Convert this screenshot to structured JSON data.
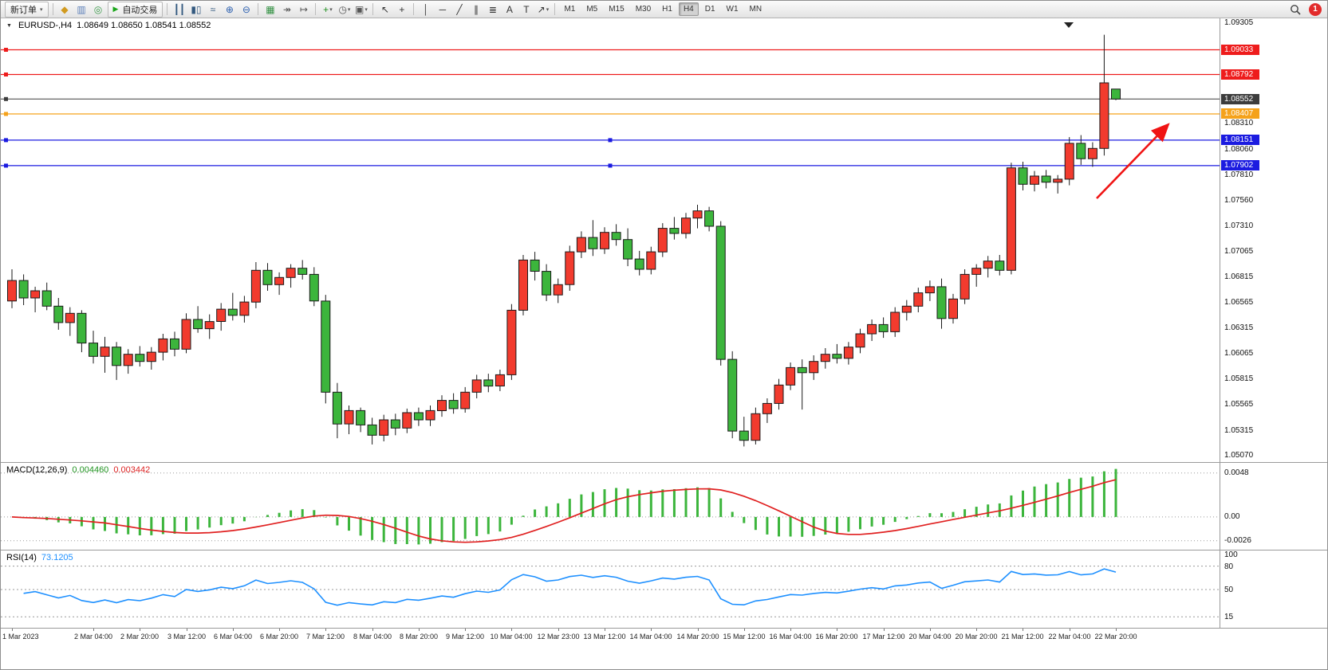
{
  "toolbar": {
    "notification_count": "1",
    "active_timeframe": "H4",
    "timeframes": [
      "M1",
      "M5",
      "M15",
      "M30",
      "H1",
      "H4",
      "D1",
      "W1",
      "MN"
    ],
    "items": [
      {
        "type": "button",
        "name": "new-order-button",
        "label": "新订单",
        "caret": true
      },
      {
        "type": "sep"
      },
      {
        "type": "icon",
        "name": "market-watch-icon",
        "glyph": "◆",
        "color": "#d19a1f"
      },
      {
        "type": "icon",
        "name": "data-window-icon",
        "glyph": "▥",
        "color": "#5b7fb9"
      },
      {
        "type": "icon",
        "name": "navigator-icon",
        "glyph": "◎",
        "color": "#3a9a4a"
      },
      {
        "type": "button",
        "name": "auto-trading-button",
        "label": "自动交易",
        "play": true
      },
      {
        "type": "sep"
      },
      {
        "type": "icon",
        "name": "bar-chart-icon",
        "glyph": "┃┃",
        "color": "#33597f"
      },
      {
        "type": "icon",
        "name": "candlestick-chart-icon",
        "glyph": "▮▯",
        "color": "#33597f"
      },
      {
        "type": "icon",
        "name": "line-chart-icon",
        "glyph": "≈",
        "color": "#33597f"
      },
      {
        "type": "icon",
        "name": "zoom-in-icon",
        "glyph": "⊕",
        "color": "#2f62b0"
      },
      {
        "type": "icon",
        "name": "zoom-out-icon",
        "glyph": "⊖",
        "color": "#2f62b0"
      },
      {
        "type": "sep"
      },
      {
        "type": "icon",
        "name": "tile-windows-icon",
        "glyph": "▦",
        "color": "#2f8f3f"
      },
      {
        "type": "icon",
        "name": "auto-scroll-icon",
        "glyph": "↠",
        "color": "#555555"
      },
      {
        "type": "icon",
        "name": "chart-shift-icon",
        "glyph": "↦",
        "color": "#555555"
      },
      {
        "type": "sep"
      },
      {
        "type": "icon",
        "name": "indicators-icon",
        "glyph": "+",
        "color": "#1f8f1f",
        "caret": true
      },
      {
        "type": "icon",
        "name": "periods-icon",
        "glyph": "◷",
        "color": "#555555",
        "caret": true
      },
      {
        "type": "icon",
        "name": "templates-icon",
        "glyph": "▣",
        "color": "#555555",
        "caret": true
      },
      {
        "type": "sep"
      },
      {
        "type": "icon",
        "name": "cursor-icon",
        "glyph": "↖",
        "color": "#333333"
      },
      {
        "type": "icon",
        "name": "crosshair-icon",
        "glyph": "+",
        "color": "#333333"
      },
      {
        "type": "sep"
      },
      {
        "type": "icon",
        "name": "vertical-line-icon",
        "glyph": "│",
        "color": "#333333"
      },
      {
        "type": "icon",
        "name": "horizontal-line-icon",
        "glyph": "─",
        "color": "#333333"
      },
      {
        "type": "icon",
        "name": "trendline-icon",
        "glyph": "╱",
        "color": "#333333"
      },
      {
        "type": "icon",
        "name": "equidistant-channel-icon",
        "glyph": "∥",
        "color": "#333333"
      },
      {
        "type": "icon",
        "name": "fibonacci-icon",
        "glyph": "≣",
        "color": "#333333"
      },
      {
        "type": "icon",
        "name": "text-icon",
        "glyph": "A",
        "color": "#333333"
      },
      {
        "type": "icon",
        "name": "text-label-icon",
        "glyph": "T",
        "color": "#333333"
      },
      {
        "type": "icon",
        "name": "arrows-icon",
        "glyph": "↗",
        "color": "#333333",
        "caret": true
      },
      {
        "type": "sep"
      }
    ]
  },
  "chart_data": {
    "type": "candlestick",
    "title": "EURUSD-,H4",
    "ohlc_text": "1.08649 1.08650 1.08541 1.08552",
    "symbol": "EURUSD-",
    "timeframe": "H4",
    "up_color": "#f23b2e",
    "down_color": "#3cb53c",
    "price_range": [
      1.05,
      1.0934
    ],
    "candles": [
      [
        1.0658,
        1.0689,
        1.0651,
        1.0678
      ],
      [
        1.0678,
        1.0684,
        1.0654,
        1.0661
      ],
      [
        1.0661,
        1.0672,
        1.0647,
        1.0668
      ],
      [
        1.0668,
        1.0676,
        1.0649,
        1.0653
      ],
      [
        1.0653,
        1.0661,
        1.063,
        1.0637
      ],
      [
        1.0637,
        1.0652,
        1.0624,
        1.0646
      ],
      [
        1.0646,
        1.0649,
        1.0608,
        1.0617
      ],
      [
        1.0617,
        1.0629,
        1.0597,
        1.0604
      ],
      [
        1.0604,
        1.0623,
        1.0588,
        1.0613
      ],
      [
        1.0613,
        1.0618,
        1.0581,
        1.0595
      ],
      [
        1.0595,
        1.0611,
        1.0587,
        1.0606
      ],
      [
        1.0606,
        1.0614,
        1.0594,
        1.0599
      ],
      [
        1.0599,
        1.0613,
        1.0591,
        1.0608
      ],
      [
        1.0608,
        1.0626,
        1.06,
        1.0621
      ],
      [
        1.0621,
        1.0628,
        1.0604,
        1.0611
      ],
      [
        1.0611,
        1.0646,
        1.0607,
        1.064
      ],
      [
        1.064,
        1.0653,
        1.0627,
        1.0631
      ],
      [
        1.0631,
        1.0645,
        1.0621,
        1.0638
      ],
      [
        1.0638,
        1.0656,
        1.0629,
        1.065
      ],
      [
        1.065,
        1.0666,
        1.0639,
        1.0644
      ],
      [
        1.0644,
        1.0663,
        1.0637,
        1.0657
      ],
      [
        1.0657,
        1.0696,
        1.0651,
        1.0688
      ],
      [
        1.0688,
        1.0695,
        1.0668,
        1.0674
      ],
      [
        1.0674,
        1.0686,
        1.0664,
        1.0681
      ],
      [
        1.0681,
        1.0694,
        1.0671,
        1.069
      ],
      [
        1.069,
        1.0698,
        1.0679,
        1.0684
      ],
      [
        1.0684,
        1.0691,
        1.0653,
        1.0658
      ],
      [
        1.0658,
        1.0664,
        1.0558,
        1.0569
      ],
      [
        1.0569,
        1.0578,
        1.0524,
        1.0538
      ],
      [
        1.0538,
        1.0556,
        1.0528,
        1.0551
      ],
      [
        1.0551,
        1.0554,
        1.053,
        1.0537
      ],
      [
        1.0537,
        1.0544,
        1.0518,
        1.0527
      ],
      [
        1.0527,
        1.0547,
        1.0521,
        1.0542
      ],
      [
        1.0542,
        1.0548,
        1.0527,
        1.0534
      ],
      [
        1.0534,
        1.0553,
        1.0529,
        1.0549
      ],
      [
        1.0549,
        1.0554,
        1.0536,
        1.0542
      ],
      [
        1.0542,
        1.0556,
        1.0536,
        1.0551
      ],
      [
        1.0551,
        1.0566,
        1.0545,
        1.0561
      ],
      [
        1.0561,
        1.0568,
        1.0548,
        1.0553
      ],
      [
        1.0553,
        1.0574,
        1.0549,
        1.0569
      ],
      [
        1.0569,
        1.0586,
        1.0563,
        1.0581
      ],
      [
        1.0581,
        1.0587,
        1.0569,
        1.0575
      ],
      [
        1.0575,
        1.0591,
        1.057,
        1.0586
      ],
      [
        1.0586,
        1.0655,
        1.0581,
        1.0649
      ],
      [
        1.0649,
        1.0703,
        1.0644,
        1.0698
      ],
      [
        1.0698,
        1.0706,
        1.0678,
        1.0687
      ],
      [
        1.0687,
        1.0694,
        1.0658,
        1.0664
      ],
      [
        1.0664,
        1.068,
        1.0656,
        1.0674
      ],
      [
        1.0674,
        1.0712,
        1.0668,
        1.0706
      ],
      [
        1.0706,
        1.0726,
        1.07,
        1.072
      ],
      [
        1.072,
        1.0737,
        1.0702,
        1.0709
      ],
      [
        1.0709,
        1.073,
        1.0704,
        1.0725
      ],
      [
        1.0725,
        1.0733,
        1.0712,
        1.0718
      ],
      [
        1.0718,
        1.0729,
        1.0692,
        1.0699
      ],
      [
        1.0699,
        1.0707,
        1.0683,
        1.0689
      ],
      [
        1.0689,
        1.0711,
        1.0684,
        1.0706
      ],
      [
        1.0706,
        1.0734,
        1.0701,
        1.0729
      ],
      [
        1.0729,
        1.074,
        1.0718,
        1.0724
      ],
      [
        1.0724,
        1.0744,
        1.0719,
        1.0739
      ],
      [
        1.0739,
        1.0752,
        1.0729,
        1.0746
      ],
      [
        1.0746,
        1.075,
        1.0726,
        1.0731
      ],
      [
        1.0731,
        1.0736,
        1.0595,
        1.0601
      ],
      [
        1.0601,
        1.0609,
        1.0524,
        1.0531
      ],
      [
        1.0531,
        1.0545,
        1.0516,
        1.0522
      ],
      [
        1.0522,
        1.0554,
        1.0518,
        1.0548
      ],
      [
        1.0548,
        1.0563,
        1.0539,
        1.0558
      ],
      [
        1.0558,
        1.0582,
        1.0552,
        1.0576
      ],
      [
        1.0576,
        1.0598,
        1.0571,
        1.0593
      ],
      [
        1.0593,
        1.0601,
        1.0552,
        1.0588
      ],
      [
        1.0588,
        1.0605,
        1.0581,
        1.0599
      ],
      [
        1.0599,
        1.0612,
        1.0592,
        1.0606
      ],
      [
        1.0606,
        1.0616,
        1.0597,
        1.0602
      ],
      [
        1.0602,
        1.0618,
        1.0596,
        1.0613
      ],
      [
        1.0613,
        1.0631,
        1.0607,
        1.0626
      ],
      [
        1.0626,
        1.064,
        1.0619,
        1.0635
      ],
      [
        1.0635,
        1.0642,
        1.0622,
        1.0628
      ],
      [
        1.0628,
        1.0652,
        1.0623,
        1.0647
      ],
      [
        1.0647,
        1.0659,
        1.0639,
        1.0653
      ],
      [
        1.0653,
        1.0671,
        1.0647,
        1.0666
      ],
      [
        1.0666,
        1.0678,
        1.0658,
        1.0672
      ],
      [
        1.0672,
        1.068,
        1.0631,
        1.0641
      ],
      [
        1.0641,
        1.0665,
        1.0636,
        1.066
      ],
      [
        1.066,
        1.0689,
        1.0655,
        1.0684
      ],
      [
        1.0684,
        1.0694,
        1.0672,
        1.069
      ],
      [
        1.069,
        1.0702,
        1.0681,
        1.0697
      ],
      [
        1.0697,
        1.0703,
        1.0683,
        1.0688
      ],
      [
        1.0688,
        1.0793,
        1.0684,
        1.0788
      ],
      [
        1.0788,
        1.0794,
        1.0766,
        1.0772
      ],
      [
        1.0772,
        1.0785,
        1.0765,
        1.078
      ],
      [
        1.078,
        1.0786,
        1.0768,
        1.0774
      ],
      [
        1.0774,
        1.0781,
        1.0763,
        1.0777
      ],
      [
        1.0777,
        1.0818,
        1.0771,
        1.0812
      ],
      [
        1.0812,
        1.082,
        1.0791,
        1.0797
      ],
      [
        1.0797,
        1.0813,
        1.0789,
        1.0807
      ],
      [
        1.0807,
        1.0918,
        1.08,
        1.0871
      ],
      [
        1.08649,
        1.0865,
        1.08541,
        1.08552
      ]
    ],
    "x_labels": [
      "1 Mar 2023",
      "2 Mar 04:00",
      "2 Mar 20:00",
      "3 Mar 12:00",
      "6 Mar 04:00",
      "6 Mar 20:00",
      "7 Mar 12:00",
      "8 Mar 04:00",
      "8 Mar 20:00",
      "9 Mar 12:00",
      "10 Mar 04:00",
      "12 Mar 23:00",
      "13 Mar 12:00",
      "14 Mar 04:00",
      "14 Mar 20:00",
      "15 Mar 12:00",
      "16 Mar 04:00",
      "16 Mar 20:00",
      "17 Mar 12:00",
      "20 Mar 04:00",
      "20 Mar 20:00",
      "21 Mar 12:00",
      "22 Mar 04:00",
      "22 Mar 20:00"
    ],
    "x_label_indices": [
      0,
      7,
      11,
      15,
      19,
      23,
      27,
      31,
      35,
      39,
      43,
      47,
      51,
      55,
      59,
      63,
      67,
      71,
      75,
      79,
      83,
      87,
      91,
      95
    ],
    "y_ticks": [
      "1.09305",
      "1.08310",
      "1.08060",
      "1.07810",
      "1.07560",
      "1.07310",
      "1.07065",
      "1.06815",
      "1.06565",
      "1.06315",
      "1.06065",
      "1.05815",
      "1.05565",
      "1.05315",
      "1.05070"
    ],
    "hlines": [
      {
        "price": 1.09033,
        "label": "1.09033",
        "color": "#ee1c1c",
        "selected": false
      },
      {
        "price": 1.08792,
        "label": "1.08792",
        "color": "#ee1c1c",
        "selected": false
      },
      {
        "price": 1.08552,
        "label": "1.08552",
        "color": "#3c3c3c",
        "selected": false,
        "is_current_price": true
      },
      {
        "price": 1.08407,
        "label": "1.08407",
        "color": "#f5a21b",
        "selected": false
      },
      {
        "price": 1.08151,
        "label": "1.08151",
        "color": "#1b1be0",
        "selected": true
      },
      {
        "price": 1.07902,
        "label": "1.07902",
        "color": "#1b1be0",
        "selected": true
      }
    ],
    "arrow": {
      "x1_frac": 0.899,
      "price1": 1.0758,
      "x2_frac": 0.957,
      "price2": 1.0829,
      "color": "#f01414"
    },
    "indicators": {
      "macd": {
        "label": "MACD(12,26,9)",
        "main_value": "0.004460",
        "signal_value": "0.003442",
        "fast": 12,
        "slow": 26,
        "signal_period": 9,
        "histogram_color": "#3cb53c",
        "signal_color": "#e02020",
        "ticks": [
          {
            "value": 0.0048,
            "label": "0.0048"
          },
          {
            "value": 0,
            "label": "0.00"
          },
          {
            "value": -0.0026,
            "label": "-0.0026"
          }
        ]
      },
      "rsi": {
        "label": "RSI(14)",
        "value": "73.1205",
        "period": 14,
        "line_color": "#1E90FF",
        "levels": [
          80,
          50,
          15
        ],
        "ticks": [
          {
            "value": 100,
            "label": "100"
          },
          {
            "value": 80,
            "label": "80"
          },
          {
            "value": 50,
            "label": "50"
          },
          {
            "value": 15,
            "label": "15"
          }
        ]
      }
    }
  }
}
